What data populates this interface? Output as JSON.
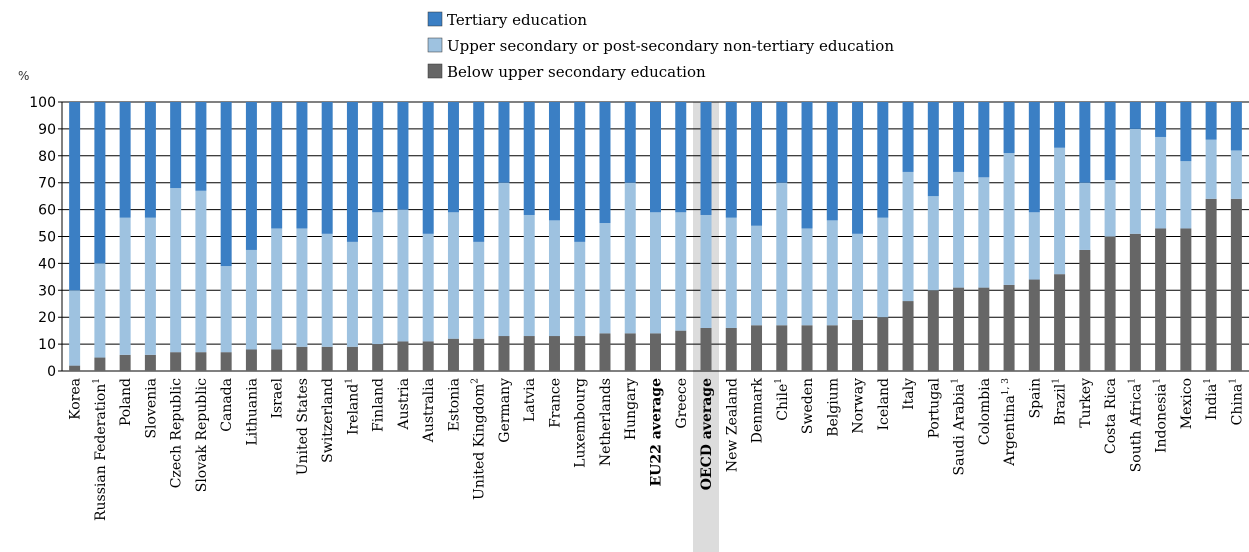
{
  "chart_data": {
    "type": "bar",
    "stacked": true,
    "ylabel": "%",
    "ylim": [
      0,
      100
    ],
    "yticks": [
      0,
      10,
      20,
      30,
      40,
      50,
      60,
      70,
      80,
      90,
      100
    ],
    "grid": true,
    "legend_position": "top-center",
    "categories": [
      {
        "name": "Korea",
        "sup": "",
        "bold": false
      },
      {
        "name": "Russian Federation",
        "sup": "1",
        "bold": false
      },
      {
        "name": "Poland",
        "sup": "",
        "bold": false
      },
      {
        "name": "Slovenia",
        "sup": "",
        "bold": false
      },
      {
        "name": "Czech Republic",
        "sup": "",
        "bold": false
      },
      {
        "name": "Slovak Republic",
        "sup": "",
        "bold": false
      },
      {
        "name": "Canada",
        "sup": "",
        "bold": false
      },
      {
        "name": "Lithuania",
        "sup": "",
        "bold": false
      },
      {
        "name": "Israel",
        "sup": "",
        "bold": false
      },
      {
        "name": "United States",
        "sup": "",
        "bold": false
      },
      {
        "name": "Switzerland",
        "sup": "",
        "bold": false
      },
      {
        "name": "Ireland",
        "sup": "1",
        "bold": false
      },
      {
        "name": "Finland",
        "sup": "",
        "bold": false
      },
      {
        "name": "Austria",
        "sup": "",
        "bold": false
      },
      {
        "name": "Australia",
        "sup": "",
        "bold": false
      },
      {
        "name": "Estonia",
        "sup": "",
        "bold": false
      },
      {
        "name": "United Kingdom",
        "sup": "2",
        "bold": false
      },
      {
        "name": "Germany",
        "sup": "",
        "bold": false
      },
      {
        "name": "Latvia",
        "sup": "",
        "bold": false
      },
      {
        "name": "France",
        "sup": "",
        "bold": false
      },
      {
        "name": "Luxembourg",
        "sup": "",
        "bold": false
      },
      {
        "name": "Netherlands",
        "sup": "",
        "bold": false
      },
      {
        "name": "Hungary",
        "sup": "",
        "bold": false
      },
      {
        "name": "EU22 average",
        "sup": "",
        "bold": true
      },
      {
        "name": "Greece",
        "sup": "",
        "bold": false
      },
      {
        "name": "OECD average",
        "sup": "",
        "bold": true,
        "highlight": true
      },
      {
        "name": "New Zealand",
        "sup": "",
        "bold": false
      },
      {
        "name": "Denmark",
        "sup": "",
        "bold": false
      },
      {
        "name": "Chile",
        "sup": "1",
        "bold": false
      },
      {
        "name": "Sweden",
        "sup": "",
        "bold": false
      },
      {
        "name": "Belgium",
        "sup": "",
        "bold": false
      },
      {
        "name": "Norway",
        "sup": "",
        "bold": false
      },
      {
        "name": "Iceland",
        "sup": "",
        "bold": false
      },
      {
        "name": "Italy",
        "sup": "",
        "bold": false
      },
      {
        "name": "Portugal",
        "sup": "",
        "bold": false
      },
      {
        "name": "Saudi Arabia",
        "sup": "1",
        "bold": false
      },
      {
        "name": "Colombia",
        "sup": "",
        "bold": false
      },
      {
        "name": "Argentina",
        "sup": "1, 3",
        "bold": false
      },
      {
        "name": "Spain",
        "sup": "",
        "bold": false
      },
      {
        "name": "Brazil",
        "sup": "1",
        "bold": false
      },
      {
        "name": "Turkey",
        "sup": "",
        "bold": false
      },
      {
        "name": "Costa Rica",
        "sup": "",
        "bold": false
      },
      {
        "name": "South Africa",
        "sup": "1",
        "bold": false
      },
      {
        "name": "Indonesia",
        "sup": "1",
        "bold": false
      },
      {
        "name": "Mexico",
        "sup": "",
        "bold": false
      },
      {
        "name": "India",
        "sup": "1",
        "bold": false
      },
      {
        "name": "China",
        "sup": "1",
        "bold": false
      }
    ],
    "series": [
      {
        "name": "Below upper secondary education",
        "color": "#666666",
        "values": [
          2,
          5,
          6,
          6,
          7,
          7,
          7,
          8,
          8,
          9,
          9,
          9,
          10,
          11,
          11,
          12,
          12,
          13,
          13,
          13,
          13,
          14,
          14,
          14,
          15,
          16,
          16,
          17,
          17,
          17,
          17,
          19,
          20,
          26,
          30,
          31,
          31,
          32,
          34,
          36,
          45,
          50,
          51,
          53,
          53,
          64,
          64
        ]
      },
      {
        "name": "Upper secondary or post-secondary non-tertiary education",
        "color": "#9ec2e0",
        "values": [
          28,
          35,
          51,
          51,
          61,
          60,
          32,
          37,
          45,
          44,
          42,
          39,
          49,
          49,
          40,
          47,
          36,
          57,
          45,
          43,
          35,
          41,
          56,
          45,
          44,
          42,
          41,
          37,
          53,
          36,
          39,
          32,
          37,
          48,
          35,
          43,
          41,
          49,
          25,
          47,
          25,
          21,
          39,
          34,
          25,
          22,
          18
        ]
      },
      {
        "name": "Tertiary education",
        "color": "#3b7fc4",
        "values": [
          70,
          60,
          43,
          43,
          32,
          33,
          61,
          55,
          47,
          47,
          49,
          52,
          41,
          40,
          49,
          41,
          52,
          30,
          42,
          44,
          52,
          45,
          30,
          41,
          41,
          42,
          43,
          46,
          30,
          47,
          44,
          49,
          43,
          26,
          35,
          26,
          28,
          19,
          41,
          17,
          30,
          29,
          10,
          13,
          22,
          14,
          18
        ]
      }
    ]
  }
}
